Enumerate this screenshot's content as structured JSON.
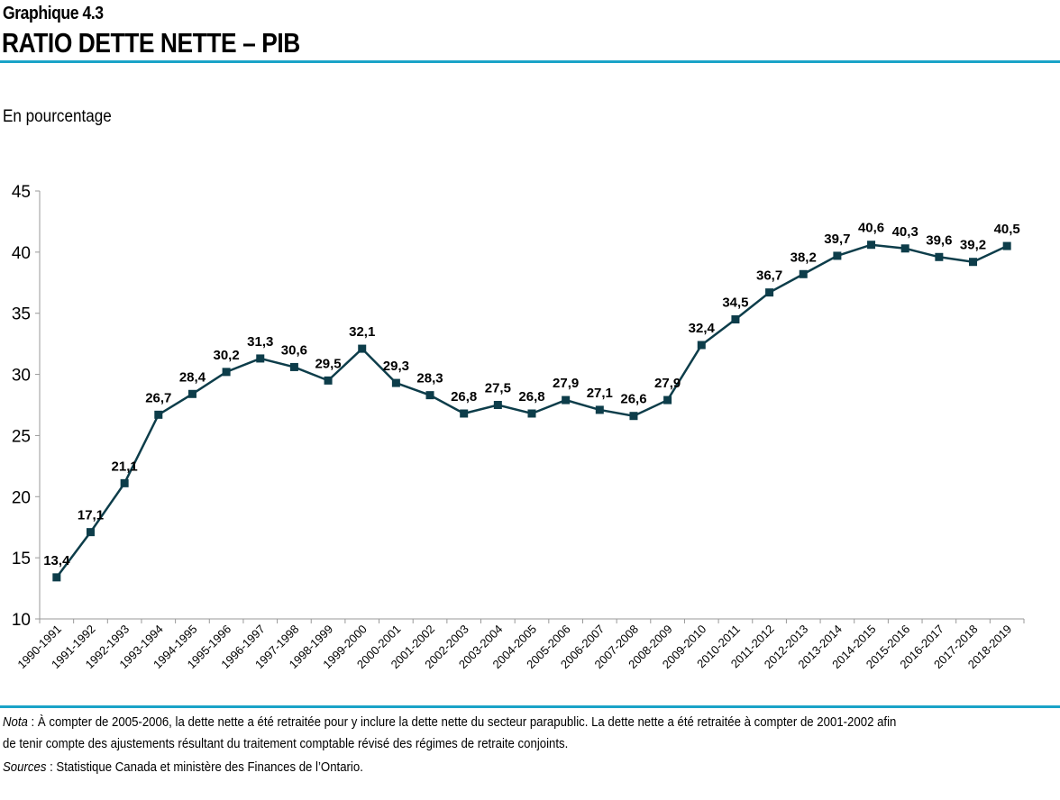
{
  "header": {
    "kicker": "Graphique 4.3",
    "title": "RATIO DETTE NETTE – PIB",
    "unit": "En pourcentage"
  },
  "colors": {
    "accent_rule": "#1aa3c8",
    "series": "#0d3d4a",
    "axis": "#999999"
  },
  "chart_data": {
    "type": "line",
    "title": "RATIO DETTE NETTE – PIB",
    "ylabel": "En pourcentage",
    "ylim": [
      10,
      45
    ],
    "yticks": [
      10,
      15,
      20,
      25,
      30,
      35,
      40,
      45
    ],
    "grid": false,
    "marker": "square",
    "categories": [
      "1990-1991",
      "1991-1992",
      "1992-1993",
      "1993-1994",
      "1994-1995",
      "1995-1996",
      "1996-1997",
      "1997-1998",
      "1998-1999",
      "1999-2000",
      "2000-2001",
      "2001-2002",
      "2002-2003",
      "2003-2004",
      "2004-2005",
      "2005-2006",
      "2006-2007",
      "2007-2008",
      "2008-2009",
      "2009-2010",
      "2010-2011",
      "2011-2012",
      "2012-2013",
      "2013-2014",
      "2014-2015",
      "2015-2016",
      "2016-2017",
      "2017-2018",
      "2018-2019"
    ],
    "values": [
      13.4,
      17.1,
      21.1,
      26.7,
      28.4,
      30.2,
      31.3,
      30.6,
      29.5,
      32.1,
      29.3,
      28.3,
      26.8,
      27.5,
      26.8,
      27.9,
      27.1,
      26.6,
      27.9,
      32.4,
      34.5,
      36.7,
      38.2,
      39.7,
      40.6,
      40.3,
      39.6,
      39.2,
      40.5
    ]
  },
  "footer": {
    "nota_label": "Nota",
    "nota_line1": " : À compter de 2005-2006, la dette nette a été retraitée pour y inclure la dette nette du secteur parapublic. La dette nette a été retraitée à compter de 2001-2002 afin",
    "nota_line2": "de tenir compte des ajustements résultant du traitement comptable révisé des régimes de retraite conjoints.",
    "sources_label": "Sources",
    "sources_text": " : Statistique Canada et ministère des Finances de l’Ontario."
  }
}
